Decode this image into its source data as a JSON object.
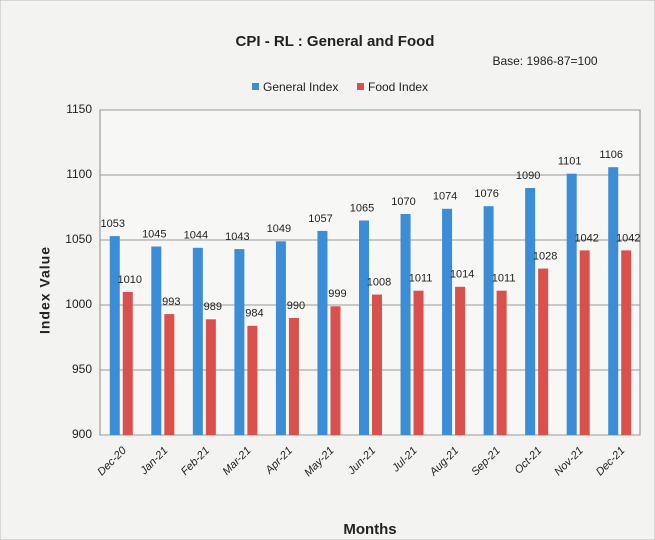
{
  "chart_data": {
    "type": "bar",
    "title": "CPI - RL : General and Food",
    "subtitle": "Base: 1986-87=100",
    "x_label": "Months",
    "y_label": "Index Value",
    "categories": [
      "Dec-20",
      "Jan-21",
      "Feb-21",
      "Mar-21",
      "Apr-21",
      "May-21",
      "Jun-21",
      "Jul-21",
      "Aug-21",
      "Sep-21",
      "Oct-21",
      "Nov-21",
      "Dec-21"
    ],
    "series": [
      {
        "name": "General Index",
        "color": "#3b8ed6",
        "values": [
          1053,
          1045,
          1044,
          1043,
          1049,
          1057,
          1065,
          1070,
          1074,
          1076,
          1090,
          1101,
          1106
        ]
      },
      {
        "name": "Food Index",
        "color": "#d9504c",
        "values": [
          1010,
          993,
          989,
          984,
          990,
          999,
          1008,
          1011,
          1014,
          1011,
          1028,
          1042,
          1042
        ]
      }
    ],
    "ylim": [
      900,
      1150
    ],
    "yticks": [
      900,
      950,
      1000,
      1050,
      1100,
      1150
    ],
    "grid": true,
    "legend": "top"
  }
}
